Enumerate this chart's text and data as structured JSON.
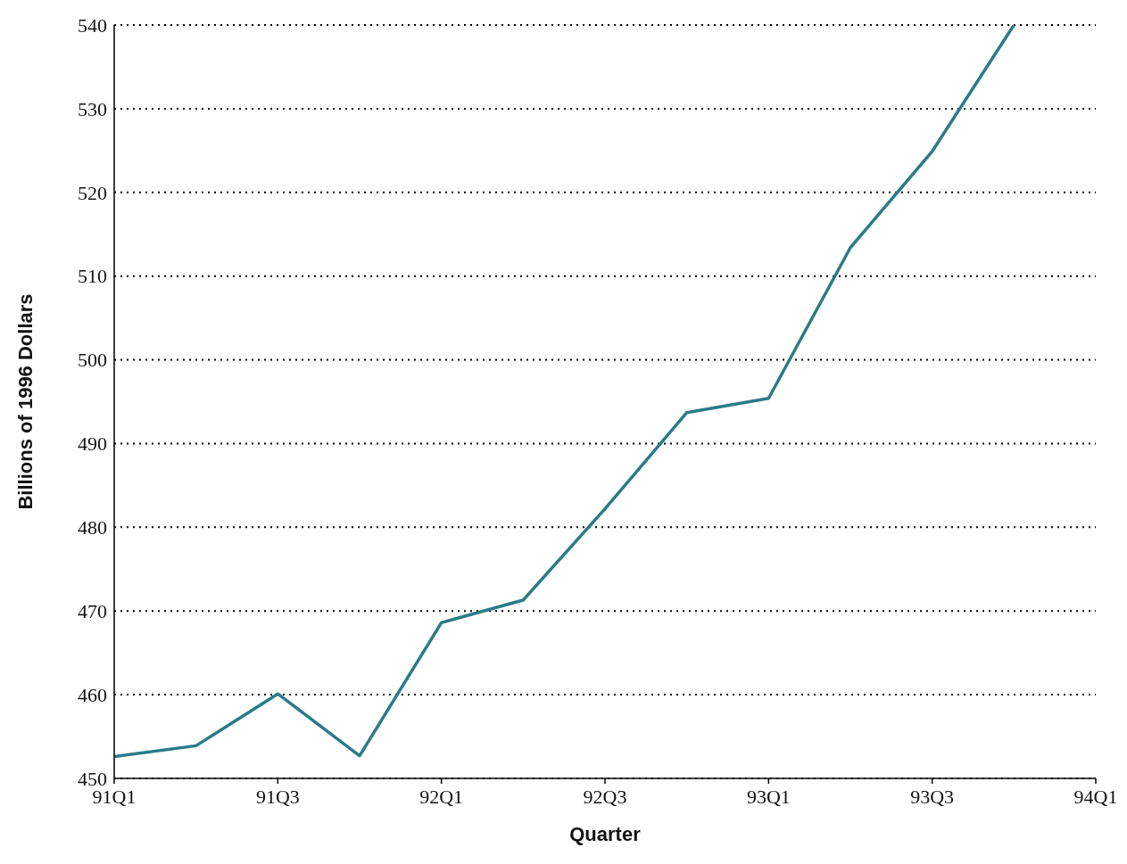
{
  "chart_data": {
    "type": "line",
    "xlabel": "Quarter",
    "ylabel": "Billions of 1996 Dollars",
    "categories": [
      "91Q1",
      null,
      "91Q3",
      null,
      "92Q1",
      null,
      "92Q3",
      null,
      "93Q1",
      null,
      "93Q3",
      null,
      "94Q1"
    ],
    "series": [
      {
        "color": "#2a7b88",
        "values": [
          452.6,
          453.9,
          460.1,
          452.7,
          468.6,
          471.3,
          482.2,
          493.7,
          495.4,
          513.4,
          524.9,
          540,
          null
        ]
      }
    ],
    "ylim": [
      450,
      540
    ],
    "yticks": [
      450,
      460,
      470,
      480,
      490,
      500,
      510,
      520,
      530,
      540
    ],
    "grid": "y",
    "marker": "none",
    "line_style": "solid"
  }
}
